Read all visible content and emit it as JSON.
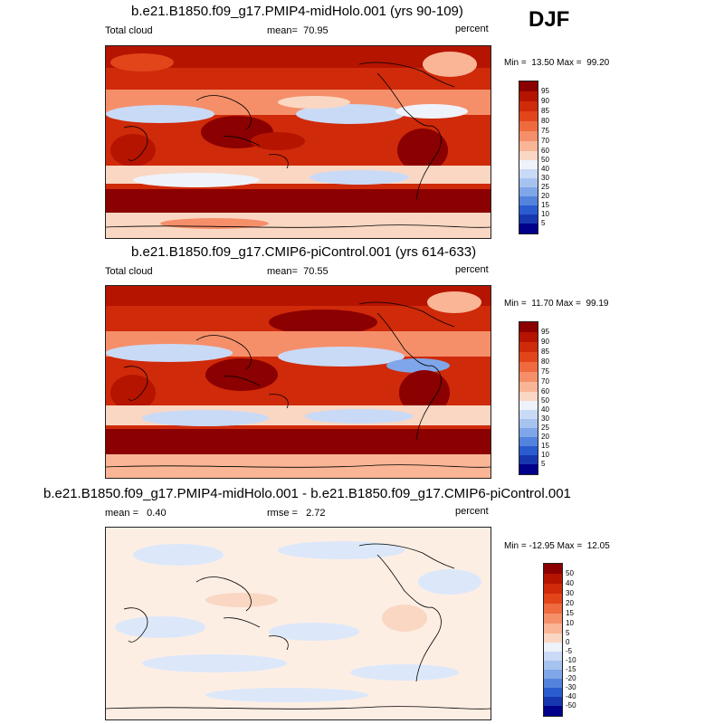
{
  "season": "DJF",
  "panels": [
    {
      "title": "b.e21.B1850.f09_g17.PMIP4-midHolo.001 (yrs 90-109)",
      "left_label": "Total cloud",
      "mean_label": "mean=",
      "mean_value": "70.95",
      "units": "percent",
      "min_label": "Min =",
      "min_value": "13.50",
      "max_label": "Max =",
      "max_value": "99.20",
      "colorbar_labels": [
        "95",
        "90",
        "85",
        "80",
        "75",
        "70",
        "60",
        "50",
        "40",
        "30",
        "25",
        "20",
        "15",
        "10",
        "5"
      ]
    },
    {
      "title": "b.e21.B1850.f09_g17.CMIP6-piControl.001 (yrs 614-633)",
      "left_label": "Total cloud",
      "mean_label": "mean=",
      "mean_value": "70.55",
      "units": "percent",
      "min_label": "Min =",
      "min_value": "11.70",
      "max_label": "Max =",
      "max_value": "99.19",
      "colorbar_labels": [
        "95",
        "90",
        "85",
        "80",
        "75",
        "70",
        "60",
        "50",
        "40",
        "30",
        "25",
        "20",
        "15",
        "10",
        "5"
      ]
    },
    {
      "title": "b.e21.B1850.f09_g17.PMIP4-midHolo.001 - b.e21.B1850.f09_g17.CMIP6-piControl.001",
      "mean_label": "mean =",
      "mean_value": "0.40",
      "rmse_label": "rmse =",
      "rmse_value": "2.72",
      "units": "percent",
      "min_label": "Min =",
      "min_value": "-12.95",
      "max_label": "Max =",
      "max_value": "12.05",
      "colorbar_labels": [
        "50",
        "40",
        "30",
        "20",
        "15",
        "10",
        "5",
        "0",
        "-5",
        "-10",
        "-15",
        "-20",
        "-30",
        "-40",
        "-50"
      ]
    }
  ],
  "colors": {
    "scale": [
      "#8b0000",
      "#b51400",
      "#cf2a0a",
      "#e3451b",
      "#ef6a3f",
      "#f58f6a",
      "#f9b595",
      "#fad7c3",
      "#eef2fa",
      "#c9daf6",
      "#a6c3f0",
      "#7fa6e8",
      "#5383dc",
      "#2b5bd0",
      "#1737b0",
      "#00008b"
    ]
  }
}
